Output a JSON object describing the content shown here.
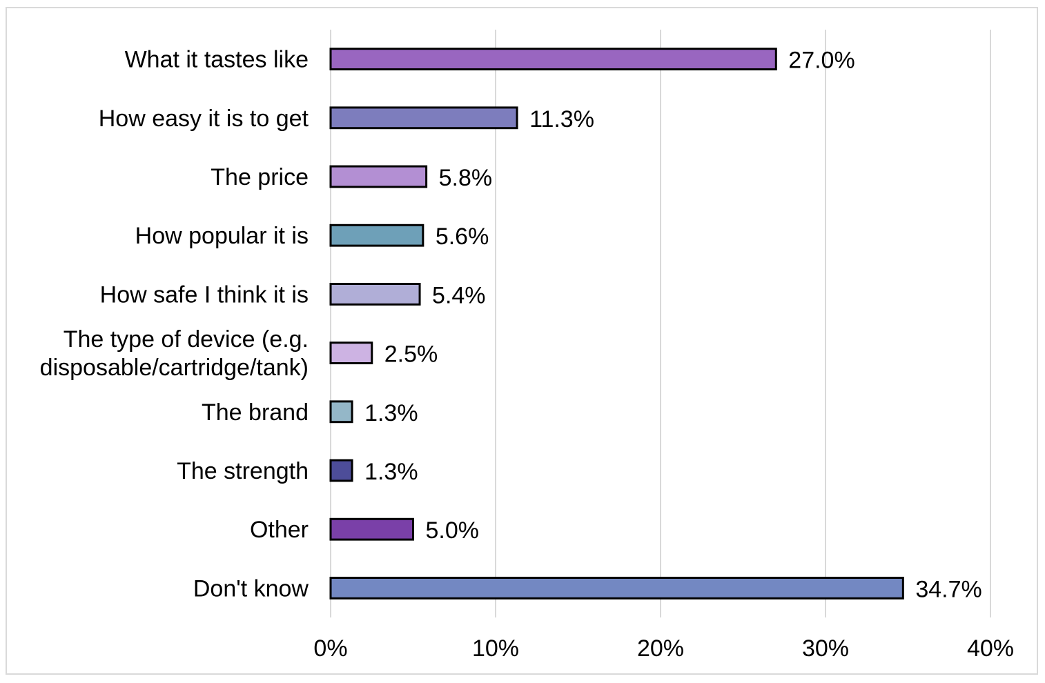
{
  "chart_data": {
    "type": "bar",
    "orientation": "horizontal",
    "categories": [
      [
        "What it tastes like"
      ],
      [
        "How easy it is to get"
      ],
      [
        "The price"
      ],
      [
        "How popular it is"
      ],
      [
        "How safe I think it is"
      ],
      [
        "The type of device (e.g.",
        "disposable/cartridge/tank)"
      ],
      [
        "The brand"
      ],
      [
        "The strength"
      ],
      [
        "Other"
      ],
      [
        "Don't know"
      ]
    ],
    "values": [
      27.0,
      11.3,
      5.8,
      5.6,
      5.4,
      2.5,
      1.3,
      1.3,
      5.0,
      34.7
    ],
    "value_labels": [
      "27.0%",
      "11.3%",
      "5.8%",
      "5.6%",
      "5.4%",
      "2.5%",
      "1.3%",
      "1.3%",
      "5.0%",
      "34.7%"
    ],
    "colors": [
      "#9966c0",
      "#7d7dbd",
      "#b38fd3",
      "#6ea0b8",
      "#b0aed7",
      "#cdb3e3",
      "#94b7c8",
      "#4d4d99",
      "#7a40a8",
      "#7388c2"
    ],
    "xlim": [
      0,
      40
    ],
    "xticks": [
      0,
      10,
      20,
      30,
      40
    ],
    "xtick_labels": [
      "0%",
      "10%",
      "20%",
      "30%",
      "40%"
    ],
    "grid": "vertical",
    "legend": "none",
    "title": "",
    "xlabel": "",
    "ylabel": ""
  }
}
